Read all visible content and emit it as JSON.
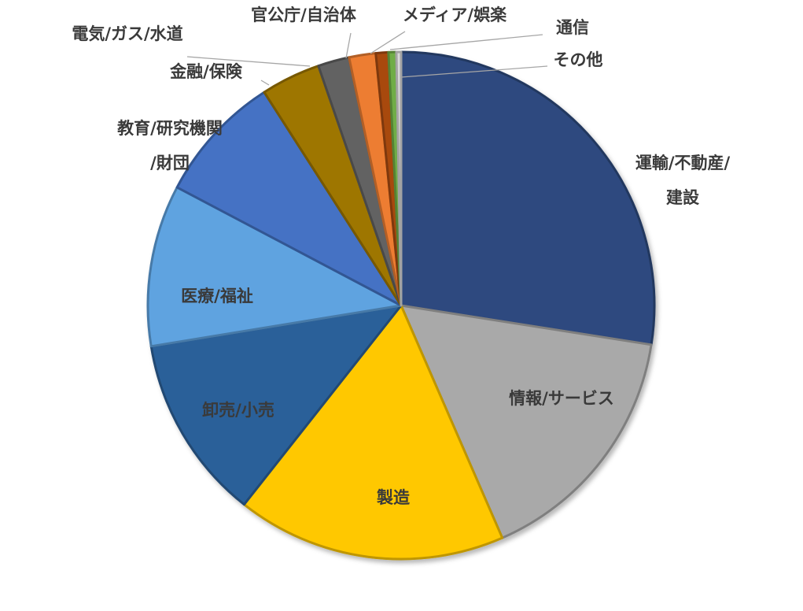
{
  "chart_data": {
    "type": "pie",
    "title": "",
    "legend": "none",
    "slices": [
      {
        "label": "運輸/不動産/\n建設",
        "value": 27.5,
        "color": "#2e4a7f"
      },
      {
        "label": "情報/サービス",
        "value": 16.0,
        "color": "#a9a9a9"
      },
      {
        "label": "製造",
        "value": 17.2,
        "color": "#ffc800"
      },
      {
        "label": "卸売/小売",
        "value": 11.8,
        "color": "#2a6099"
      },
      {
        "label": "医療/福祉",
        "value": 10.3,
        "color": "#5fa3e0"
      },
      {
        "label": "教育/研究機関\n/財団",
        "value": 8.2,
        "color": "#4472c4"
      },
      {
        "label": "金融/保険",
        "value": 3.8,
        "color": "#9e7600"
      },
      {
        "label": "電気/ガス/水道",
        "value": 2.0,
        "color": "#626262"
      },
      {
        "label": "官公庁/自治体",
        "value": 1.7,
        "color": "#ed7d31"
      },
      {
        "label": "メディア/娯楽",
        "value": 0.8,
        "color": "#a84a10"
      },
      {
        "label": "通信",
        "value": 0.5,
        "color": "#70ad47"
      },
      {
        "label": "その他",
        "value": 0.3,
        "color": "#d9d9d9"
      }
    ]
  }
}
